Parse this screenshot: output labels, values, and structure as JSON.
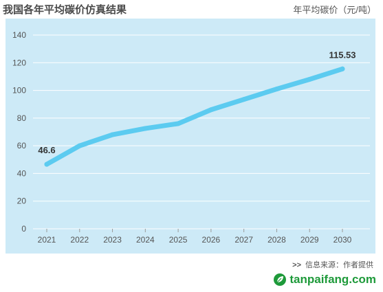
{
  "header": {
    "title": "我国各年平均碳价仿真结果",
    "unit": "年平均碳价（元/吨）"
  },
  "footer": {
    "source_arrows": ">>",
    "source": "信息来源：作者提供",
    "watermark": "tanpaifang.com"
  },
  "colors": {
    "panel_bg": "#cdeaf7",
    "line": "#5ccbf0",
    "grid": "#ffffff",
    "watermark": "#1e9a3a"
  },
  "chart_data": {
    "type": "line",
    "title": "我国各年平均碳价仿真结果",
    "ylabel": "年平均碳价（元/吨）",
    "xlabel": "",
    "categories": [
      "2021",
      "2022",
      "2023",
      "2024",
      "2025",
      "2026",
      "2027",
      "2028",
      "2029",
      "2030"
    ],
    "series": [
      {
        "values": [
          46.6,
          60,
          68,
          72.5,
          76,
          86,
          93.5,
          101,
          108,
          115.53
        ]
      }
    ],
    "ylim": [
      0,
      140
    ],
    "yticks": [
      0,
      20,
      40,
      60,
      80,
      100,
      120,
      140
    ],
    "grid": true,
    "data_labels": [
      {
        "index": 0,
        "text": "46.6"
      },
      {
        "index": 9,
        "text": "115.53"
      }
    ]
  }
}
